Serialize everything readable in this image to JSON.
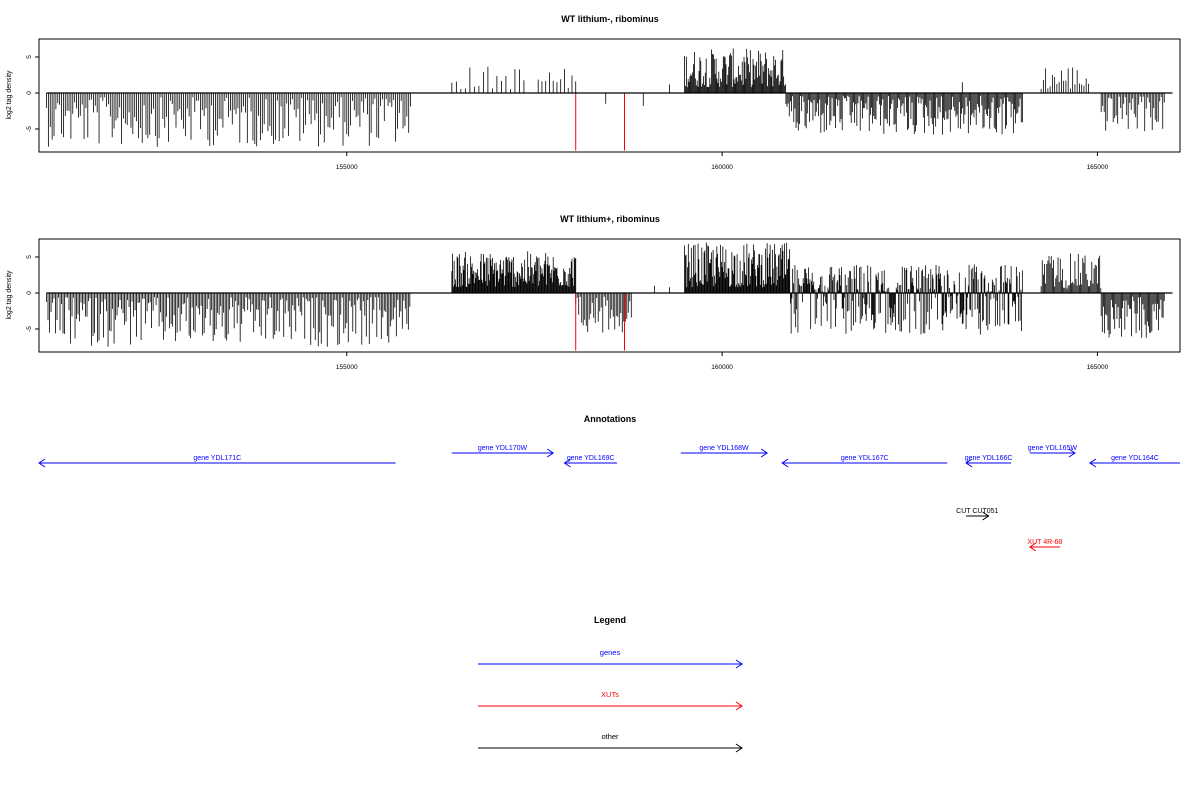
{
  "chart_data": [
    {
      "type": "bar",
      "title": "WT lithium-, ribominus",
      "ylabel": "log2 tag density",
      "xlim": [
        150900,
        166100
      ],
      "ylim": [
        -8.2,
        7.5
      ],
      "x_ticks": [
        155000,
        160000,
        165000
      ],
      "y_ticks": [
        -5,
        0,
        5
      ],
      "baseline_regions": [
        [
          151000,
          166000
        ]
      ],
      "segments": [
        {
          "from": 151000,
          "to": 155850,
          "min": -7.5,
          "max": -0.6,
          "step": 25
        },
        {
          "from": 156400,
          "to": 157400,
          "min": 0.5,
          "max": 3.8,
          "step": 60
        },
        {
          "from": 157550,
          "to": 158050,
          "min": 0.5,
          "max": 3.5,
          "step": 50
        },
        {
          "from": 159500,
          "to": 160850,
          "min": 0.8,
          "max": 6.2,
          "step": 12
        },
        {
          "from": 160850,
          "to": 164000,
          "min": -6.0,
          "max": -0.4,
          "step": 15
        },
        {
          "from": 164250,
          "to": 164900,
          "min": 0.5,
          "max": 4.0,
          "step": 30
        },
        {
          "from": 165050,
          "to": 165900,
          "min": -5.5,
          "max": -0.5,
          "step": 20
        }
      ],
      "sparse_bars": [
        {
          "x": 158450,
          "y": -1.5
        },
        {
          "x": 158700,
          "y": -1.0
        },
        {
          "x": 158950,
          "y": -1.8
        },
        {
          "x": 163200,
          "y": 1.5
        },
        {
          "x": 159300,
          "y": 1.2
        }
      ],
      "highlight_bars": [
        {
          "x": 158050,
          "y": -8.0,
          "color": "#ff0000"
        },
        {
          "x": 158700,
          "y": -8.0,
          "color": "#ff0000"
        }
      ]
    },
    {
      "type": "bar",
      "title": "WT lithium+, ribominus",
      "ylabel": "log2 tag density",
      "xlim": [
        150900,
        166100
      ],
      "ylim": [
        -8.2,
        7.5
      ],
      "x_ticks": [
        155000,
        160000,
        165000
      ],
      "y_ticks": [
        -5,
        0,
        5
      ],
      "baseline_regions": [
        [
          151000,
          166000
        ]
      ],
      "segments": [
        {
          "from": 151000,
          "to": 155850,
          "min": -7.5,
          "max": -0.6,
          "step": 20
        },
        {
          "from": 156400,
          "to": 158050,
          "min": 0.8,
          "max": 5.8,
          "step": 10
        },
        {
          "from": 158050,
          "to": 158800,
          "min": -5.5,
          "max": -0.5,
          "step": 20
        },
        {
          "from": 159500,
          "to": 160900,
          "min": 0.8,
          "max": 7.0,
          "step": 10
        },
        {
          "from": 160900,
          "to": 164000,
          "min": -5.8,
          "max": 4.0,
          "step": 10
        },
        {
          "from": 164250,
          "to": 165050,
          "min": 0.6,
          "max": 5.5,
          "step": 15
        },
        {
          "from": 165050,
          "to": 165900,
          "min": -6.5,
          "max": -0.5,
          "step": 15
        }
      ],
      "sparse_bars": [
        {
          "x": 159100,
          "y": 1.0
        },
        {
          "x": 159300,
          "y": 0.8
        }
      ],
      "highlight_bars": [
        {
          "x": 158050,
          "y": -8.0,
          "color": "#ff0000"
        },
        {
          "x": 158700,
          "y": -8.0,
          "color": "#ff0000"
        }
      ]
    }
  ],
  "annotations": {
    "title": "Annotations",
    "features": [
      {
        "label": "gene YDL171C",
        "from": 150900,
        "to": 155650,
        "dir": "left",
        "color": "#0000ff",
        "row": 2
      },
      {
        "label": "gene YDL170W",
        "from": 156400,
        "to": 157750,
        "dir": "right",
        "color": "#0000ff",
        "row": 1
      },
      {
        "label": "gene YDL169C",
        "from": 157900,
        "to": 158600,
        "dir": "left",
        "color": "#0000ff",
        "row": 2
      },
      {
        "label": "gene YDL168W",
        "from": 159450,
        "to": 160600,
        "dir": "right",
        "color": "#0000ff",
        "row": 1
      },
      {
        "label": "gene YDL167C",
        "from": 160800,
        "to": 163000,
        "dir": "left",
        "color": "#0000ff",
        "row": 2
      },
      {
        "label": "gene YDL166C",
        "from": 163250,
        "to": 163850,
        "dir": "left",
        "color": "#0000ff",
        "row": 2
      },
      {
        "label": "gene YDL165W",
        "from": 164100,
        "to": 164700,
        "dir": "right",
        "color": "#0000ff",
        "row": 1
      },
      {
        "label": "gene YDL164C",
        "from": 164900,
        "to": 166100,
        "dir": "left",
        "color": "#0000ff",
        "row": 2
      },
      {
        "label": "CUT CUT051",
        "from": 163250,
        "to": 163550,
        "dir": "right",
        "color": "#000000",
        "row": 3
      },
      {
        "label": "XUT 4R-68",
        "from": 164100,
        "to": 164500,
        "dir": "left",
        "color": "#ff0000",
        "row": 4
      }
    ]
  },
  "legend": {
    "title": "Legend",
    "items": [
      {
        "label": "genes",
        "color": "#0000ff"
      },
      {
        "label": "XUTs",
        "color": "#ff0000"
      },
      {
        "label": "other",
        "color": "#000000"
      }
    ]
  }
}
